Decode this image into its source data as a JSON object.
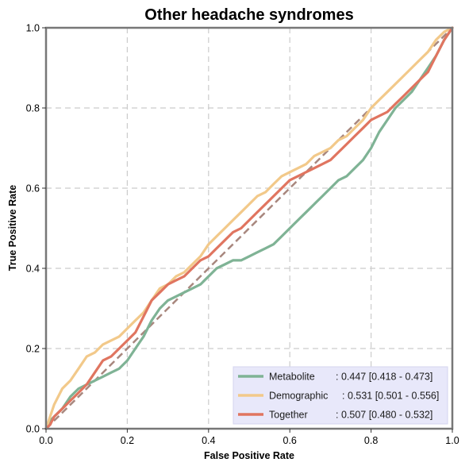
{
  "chart_data": {
    "type": "line",
    "title": "Other headache syndromes",
    "xlabel": "False Positive Rate",
    "ylabel": "True Positive Rate",
    "xlim": [
      0,
      1
    ],
    "ylim": [
      0,
      1
    ],
    "xticks": [
      "0.0",
      "0.2",
      "0.4",
      "0.6",
      "0.8",
      "1.0"
    ],
    "yticks": [
      "0.0",
      "0.2",
      "0.4",
      "0.6",
      "0.8",
      "1.0"
    ],
    "grid": true,
    "legend_position": "bottom-right",
    "diagonal_color": "#a8877e",
    "series": [
      {
        "name": "Metabolite",
        "legend_label": ": 0.447 [0.418 - 0.473]",
        "color": "#7fb395",
        "x": [
          0,
          0.01,
          0.02,
          0.04,
          0.06,
          0.08,
          0.1,
          0.12,
          0.14,
          0.16,
          0.18,
          0.2,
          0.22,
          0.24,
          0.26,
          0.28,
          0.3,
          0.32,
          0.34,
          0.36,
          0.38,
          0.4,
          0.42,
          0.44,
          0.46,
          0.48,
          0.5,
          0.52,
          0.54,
          0.56,
          0.58,
          0.6,
          0.62,
          0.64,
          0.66,
          0.68,
          0.7,
          0.72,
          0.74,
          0.76,
          0.78,
          0.8,
          0.82,
          0.84,
          0.86,
          0.88,
          0.9,
          0.92,
          0.94,
          0.96,
          0.98,
          1.0
        ],
        "y": [
          0,
          0.02,
          0.03,
          0.05,
          0.08,
          0.1,
          0.11,
          0.12,
          0.13,
          0.14,
          0.15,
          0.17,
          0.2,
          0.23,
          0.27,
          0.3,
          0.32,
          0.33,
          0.34,
          0.35,
          0.36,
          0.38,
          0.4,
          0.41,
          0.42,
          0.42,
          0.43,
          0.44,
          0.45,
          0.46,
          0.48,
          0.5,
          0.52,
          0.54,
          0.56,
          0.58,
          0.6,
          0.62,
          0.63,
          0.65,
          0.67,
          0.7,
          0.74,
          0.77,
          0.8,
          0.82,
          0.84,
          0.87,
          0.9,
          0.93,
          0.97,
          1.0
        ]
      },
      {
        "name": "Demographic",
        "legend_label": ": 0.531 [0.501 - 0.556]",
        "color": "#f2c98a",
        "x": [
          0,
          0.01,
          0.02,
          0.04,
          0.06,
          0.08,
          0.1,
          0.12,
          0.14,
          0.16,
          0.18,
          0.2,
          0.22,
          0.24,
          0.26,
          0.28,
          0.3,
          0.32,
          0.34,
          0.36,
          0.38,
          0.4,
          0.42,
          0.44,
          0.46,
          0.48,
          0.5,
          0.52,
          0.54,
          0.56,
          0.58,
          0.6,
          0.62,
          0.64,
          0.66,
          0.68,
          0.7,
          0.72,
          0.74,
          0.76,
          0.78,
          0.8,
          0.82,
          0.84,
          0.86,
          0.88,
          0.9,
          0.92,
          0.94,
          0.96,
          0.98,
          1.0
        ],
        "y": [
          0,
          0.03,
          0.06,
          0.1,
          0.12,
          0.15,
          0.18,
          0.19,
          0.21,
          0.22,
          0.23,
          0.25,
          0.27,
          0.29,
          0.32,
          0.35,
          0.36,
          0.38,
          0.39,
          0.41,
          0.43,
          0.46,
          0.48,
          0.5,
          0.52,
          0.54,
          0.56,
          0.58,
          0.59,
          0.61,
          0.63,
          0.64,
          0.65,
          0.66,
          0.68,
          0.69,
          0.7,
          0.72,
          0.73,
          0.75,
          0.77,
          0.8,
          0.82,
          0.84,
          0.86,
          0.88,
          0.9,
          0.92,
          0.94,
          0.97,
          0.99,
          1.0
        ]
      },
      {
        "name": "Together",
        "legend_label": ": 0.507 [0.480 - 0.532]",
        "color": "#e07560",
        "x": [
          0,
          0.01,
          0.02,
          0.04,
          0.06,
          0.08,
          0.1,
          0.12,
          0.14,
          0.16,
          0.18,
          0.2,
          0.22,
          0.24,
          0.26,
          0.28,
          0.3,
          0.32,
          0.34,
          0.36,
          0.38,
          0.4,
          0.42,
          0.44,
          0.46,
          0.48,
          0.5,
          0.52,
          0.54,
          0.56,
          0.58,
          0.6,
          0.62,
          0.64,
          0.66,
          0.68,
          0.7,
          0.72,
          0.74,
          0.76,
          0.78,
          0.8,
          0.82,
          0.84,
          0.86,
          0.88,
          0.9,
          0.92,
          0.94,
          0.96,
          0.98,
          1.0
        ],
        "y": [
          0,
          0.01,
          0.03,
          0.05,
          0.07,
          0.09,
          0.11,
          0.14,
          0.17,
          0.18,
          0.2,
          0.22,
          0.24,
          0.28,
          0.32,
          0.34,
          0.36,
          0.37,
          0.38,
          0.4,
          0.42,
          0.43,
          0.45,
          0.47,
          0.49,
          0.5,
          0.52,
          0.54,
          0.56,
          0.58,
          0.6,
          0.62,
          0.63,
          0.64,
          0.65,
          0.66,
          0.67,
          0.69,
          0.71,
          0.73,
          0.75,
          0.77,
          0.78,
          0.79,
          0.81,
          0.83,
          0.85,
          0.87,
          0.89,
          0.93,
          0.97,
          1.0
        ]
      }
    ]
  }
}
